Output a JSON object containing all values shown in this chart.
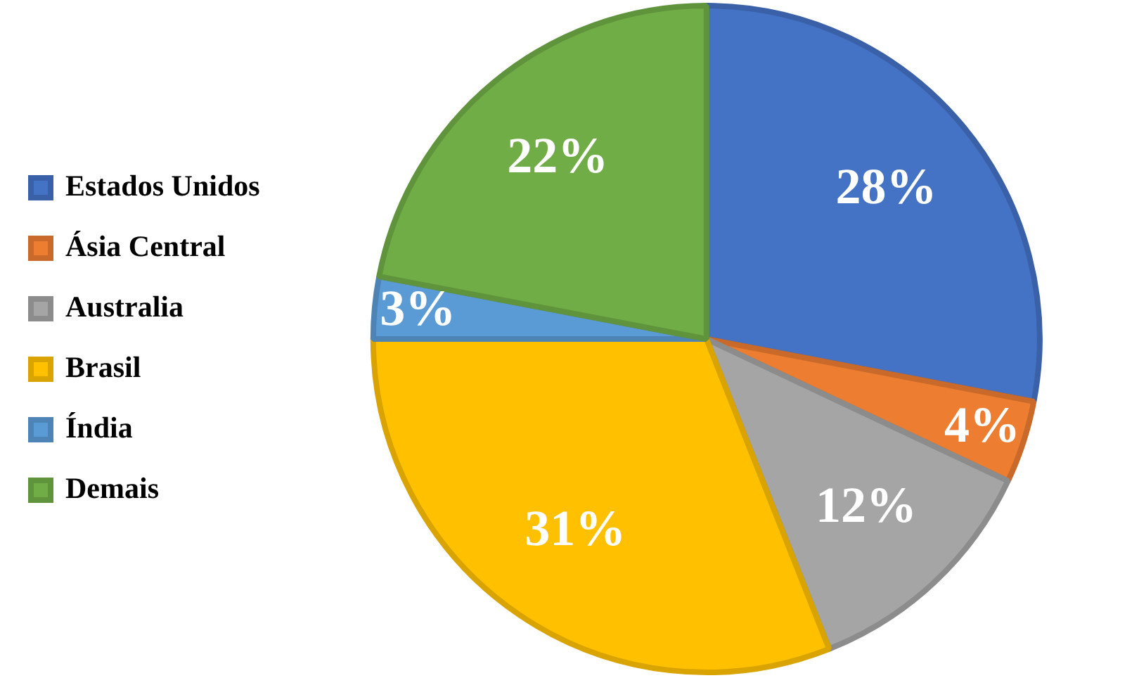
{
  "chart_data": {
    "type": "pie",
    "categories": [
      "Estados Unidos",
      "Ásia Central",
      "Australia",
      "Brasil",
      "Índia",
      "Demais"
    ],
    "values": [
      28,
      4,
      12,
      31,
      3,
      22
    ],
    "colors": [
      "#4472c4",
      "#ed7d31",
      "#a5a5a5",
      "#ffc000",
      "#5b9bd5",
      "#70ad47"
    ],
    "value_labels": [
      "28%",
      "4%",
      "12%",
      "31%",
      "3%",
      "22%"
    ],
    "legend": "left"
  }
}
